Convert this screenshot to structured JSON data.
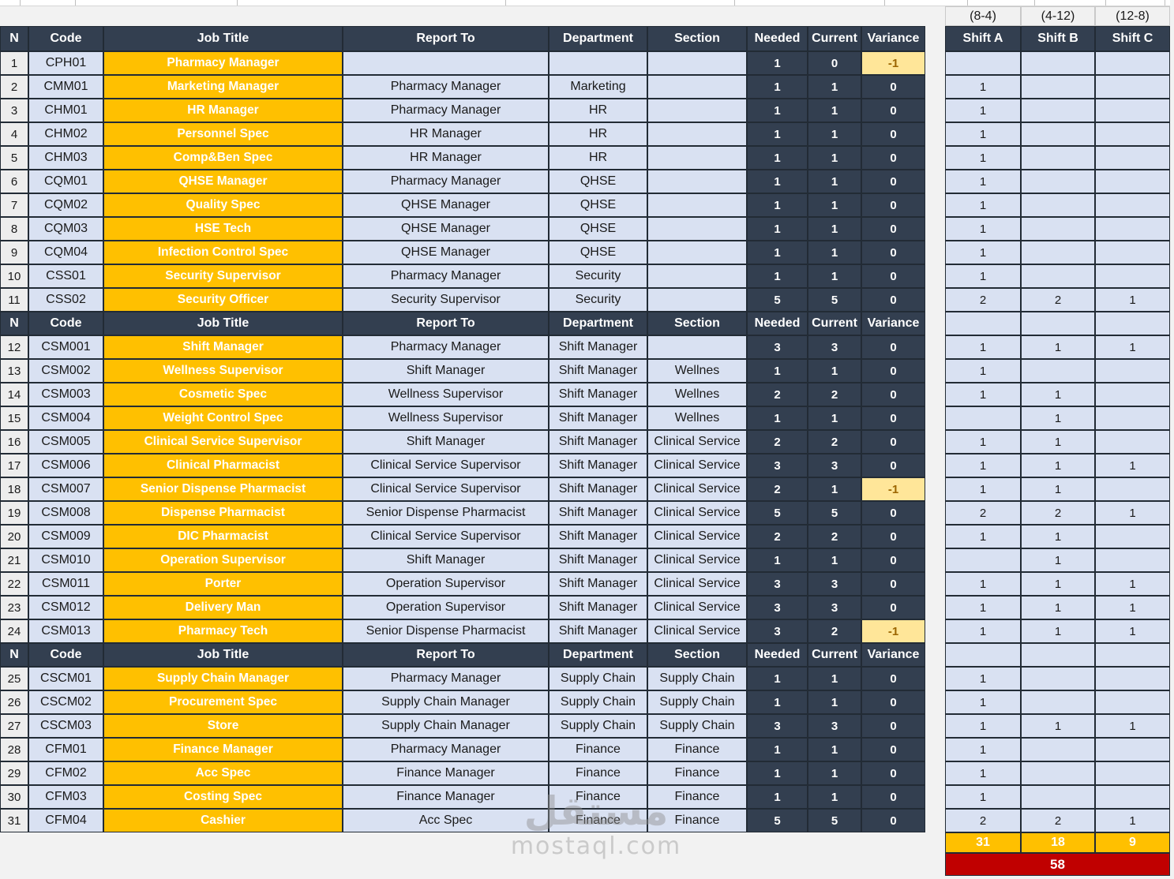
{
  "shift_time_labels": [
    "(8-4)",
    "(4-12)",
    "(12-8)"
  ],
  "columns": [
    "N",
    "Code",
    "Job Title",
    "Report To",
    "Department",
    "Section",
    "Needed",
    "Current",
    "Variance"
  ],
  "shift_columns": [
    "Shift A",
    "Shift B",
    "Shift C"
  ],
  "groups": [
    {
      "rows": [
        {
          "n": "1",
          "code": "CPH01",
          "job_title": "Pharmacy Manager",
          "report_to": "",
          "department": "",
          "section": "",
          "needed": "1",
          "current": "0",
          "variance": "-1",
          "shift_a": "",
          "shift_b": "",
          "shift_c": ""
        },
        {
          "n": "2",
          "code": "CMM01",
          "job_title": "Marketing Manager",
          "report_to": "Pharmacy Manager",
          "department": "Marketing",
          "section": "",
          "needed": "1",
          "current": "1",
          "variance": "0",
          "shift_a": "1",
          "shift_b": "",
          "shift_c": ""
        },
        {
          "n": "3",
          "code": "CHM01",
          "job_title": "HR Manager",
          "report_to": "Pharmacy Manager",
          "department": "HR",
          "section": "",
          "needed": "1",
          "current": "1",
          "variance": "0",
          "shift_a": "1",
          "shift_b": "",
          "shift_c": ""
        },
        {
          "n": "4",
          "code": "CHM02",
          "job_title": "Personnel Spec",
          "report_to": "HR Manager",
          "department": "HR",
          "section": "",
          "needed": "1",
          "current": "1",
          "variance": "0",
          "shift_a": "1",
          "shift_b": "",
          "shift_c": ""
        },
        {
          "n": "5",
          "code": "CHM03",
          "job_title": "Comp&Ben Spec",
          "report_to": "HR Manager",
          "department": "HR",
          "section": "",
          "needed": "1",
          "current": "1",
          "variance": "0",
          "shift_a": "1",
          "shift_b": "",
          "shift_c": ""
        },
        {
          "n": "6",
          "code": "CQM01",
          "job_title": "QHSE Manager",
          "report_to": "Pharmacy Manager",
          "department": "QHSE",
          "section": "",
          "needed": "1",
          "current": "1",
          "variance": "0",
          "shift_a": "1",
          "shift_b": "",
          "shift_c": ""
        },
        {
          "n": "7",
          "code": "CQM02",
          "job_title": "Quality Spec",
          "report_to": "QHSE Manager",
          "department": "QHSE",
          "section": "",
          "needed": "1",
          "current": "1",
          "variance": "0",
          "shift_a": "1",
          "shift_b": "",
          "shift_c": ""
        },
        {
          "n": "8",
          "code": "CQM03",
          "job_title": "HSE Tech",
          "report_to": "QHSE Manager",
          "department": "QHSE",
          "section": "",
          "needed": "1",
          "current": "1",
          "variance": "0",
          "shift_a": "1",
          "shift_b": "",
          "shift_c": ""
        },
        {
          "n": "9",
          "code": "CQM04",
          "job_title": "Infection Control Spec",
          "report_to": "QHSE Manager",
          "department": "QHSE",
          "section": "",
          "needed": "1",
          "current": "1",
          "variance": "0",
          "shift_a": "1",
          "shift_b": "",
          "shift_c": ""
        },
        {
          "n": "10",
          "code": "CSS01",
          "job_title": "Security Supervisor",
          "report_to": "Pharmacy Manager",
          "department": "Security",
          "section": "",
          "needed": "1",
          "current": "1",
          "variance": "0",
          "shift_a": "1",
          "shift_b": "",
          "shift_c": ""
        },
        {
          "n": "11",
          "code": "CSS02",
          "job_title": "Security Officer",
          "report_to": "Security Supervisor",
          "department": "Security",
          "section": "",
          "needed": "5",
          "current": "5",
          "variance": "0",
          "shift_a": "2",
          "shift_b": "2",
          "shift_c": "1"
        }
      ]
    },
    {
      "rows": [
        {
          "n": "12",
          "code": "CSM001",
          "job_title": "Shift Manager",
          "report_to": "Pharmacy Manager",
          "department": "Shift Manager",
          "section": "",
          "needed": "3",
          "current": "3",
          "variance": "0",
          "shift_a": "1",
          "shift_b": "1",
          "shift_c": "1"
        },
        {
          "n": "13",
          "code": "CSM002",
          "job_title": "Wellness Supervisor",
          "report_to": "Shift Manager",
          "department": "Shift Manager",
          "section": "Wellnes",
          "needed": "1",
          "current": "1",
          "variance": "0",
          "shift_a": "1",
          "shift_b": "",
          "shift_c": ""
        },
        {
          "n": "14",
          "code": "CSM003",
          "job_title": "Cosmetic Spec",
          "report_to": "Wellness Supervisor",
          "department": "Shift Manager",
          "section": "Wellnes",
          "needed": "2",
          "current": "2",
          "variance": "0",
          "shift_a": "1",
          "shift_b": "1",
          "shift_c": ""
        },
        {
          "n": "15",
          "code": "CSM004",
          "job_title": "Weight Control Spec",
          "report_to": "Wellness Supervisor",
          "department": "Shift Manager",
          "section": "Wellnes",
          "needed": "1",
          "current": "1",
          "variance": "0",
          "shift_a": "",
          "shift_b": "1",
          "shift_c": ""
        },
        {
          "n": "16",
          "code": "CSM005",
          "job_title": "Clinical Service Supervisor",
          "report_to": "Shift Manager",
          "department": "Shift Manager",
          "section": "Clinical Service",
          "needed": "2",
          "current": "2",
          "variance": "0",
          "shift_a": "1",
          "shift_b": "1",
          "shift_c": ""
        },
        {
          "n": "17",
          "code": "CSM006",
          "job_title": "Clinical Pharmacist",
          "report_to": "Clinical Service Supervisor",
          "department": "Shift Manager",
          "section": "Clinical Service",
          "needed": "3",
          "current": "3",
          "variance": "0",
          "shift_a": "1",
          "shift_b": "1",
          "shift_c": "1"
        },
        {
          "n": "18",
          "code": "CSM007",
          "job_title": "Senior Dispense Pharmacist",
          "report_to": "Clinical Service Supervisor",
          "department": "Shift Manager",
          "section": "Clinical Service",
          "needed": "2",
          "current": "1",
          "variance": "-1",
          "shift_a": "1",
          "shift_b": "1",
          "shift_c": ""
        },
        {
          "n": "19",
          "code": "CSM008",
          "job_title": "Dispense Pharmacist",
          "report_to": "Senior Dispense Pharmacist",
          "department": "Shift Manager",
          "section": "Clinical Service",
          "needed": "5",
          "current": "5",
          "variance": "0",
          "shift_a": "2",
          "shift_b": "2",
          "shift_c": "1"
        },
        {
          "n": "20",
          "code": "CSM009",
          "job_title": "DIC Pharmacist",
          "report_to": "Clinical Service Supervisor",
          "department": "Shift Manager",
          "section": "Clinical Service",
          "needed": "2",
          "current": "2",
          "variance": "0",
          "shift_a": "1",
          "shift_b": "1",
          "shift_c": ""
        },
        {
          "n": "21",
          "code": "CSM010",
          "job_title": "Operation Supervisor",
          "report_to": "Shift Manager",
          "department": "Shift Manager",
          "section": "Clinical Service",
          "needed": "1",
          "current": "1",
          "variance": "0",
          "shift_a": "",
          "shift_b": "1",
          "shift_c": ""
        },
        {
          "n": "22",
          "code": "CSM011",
          "job_title": "Porter",
          "report_to": "Operation Supervisor",
          "department": "Shift Manager",
          "section": "Clinical Service",
          "needed": "3",
          "current": "3",
          "variance": "0",
          "shift_a": "1",
          "shift_b": "1",
          "shift_c": "1"
        },
        {
          "n": "23",
          "code": "CSM012",
          "job_title": "Delivery Man",
          "report_to": "Operation Supervisor",
          "department": "Shift Manager",
          "section": "Clinical Service",
          "needed": "3",
          "current": "3",
          "variance": "0",
          "shift_a": "1",
          "shift_b": "1",
          "shift_c": "1"
        },
        {
          "n": "24",
          "code": "CSM013",
          "job_title": "Pharmacy Tech",
          "report_to": "Senior Dispense Pharmacist",
          "department": "Shift Manager",
          "section": "Clinical Service",
          "needed": "3",
          "current": "2",
          "variance": "-1",
          "shift_a": "1",
          "shift_b": "1",
          "shift_c": "1"
        }
      ]
    },
    {
      "rows": [
        {
          "n": "25",
          "code": "CSCM01",
          "job_title": "Supply Chain Manager",
          "report_to": "Pharmacy Manager",
          "department": "Supply Chain",
          "section": "Supply Chain",
          "needed": "1",
          "current": "1",
          "variance": "0",
          "shift_a": "1",
          "shift_b": "",
          "shift_c": ""
        },
        {
          "n": "26",
          "code": "CSCM02",
          "job_title": "Procurement Spec",
          "report_to": "Supply Chain Manager",
          "department": "Supply Chain",
          "section": "Supply Chain",
          "needed": "1",
          "current": "1",
          "variance": "0",
          "shift_a": "1",
          "shift_b": "",
          "shift_c": ""
        },
        {
          "n": "27",
          "code": "CSCM03",
          "job_title": "Store",
          "report_to": "Supply Chain Manager",
          "department": "Supply Chain",
          "section": "Supply Chain",
          "needed": "3",
          "current": "3",
          "variance": "0",
          "shift_a": "1",
          "shift_b": "1",
          "shift_c": "1"
        },
        {
          "n": "28",
          "code": "CFM01",
          "job_title": "Finance Manager",
          "report_to": "Pharmacy Manager",
          "department": "Finance",
          "section": "Finance",
          "needed": "1",
          "current": "1",
          "variance": "0",
          "shift_a": "1",
          "shift_b": "",
          "shift_c": ""
        },
        {
          "n": "29",
          "code": "CFM02",
          "job_title": "Acc Spec",
          "report_to": "Finance Manager",
          "department": "Finance",
          "section": "Finance",
          "needed": "1",
          "current": "1",
          "variance": "0",
          "shift_a": "1",
          "shift_b": "",
          "shift_c": ""
        },
        {
          "n": "30",
          "code": "CFM03",
          "job_title": "Costing Spec",
          "report_to": "Finance Manager",
          "department": "Finance",
          "section": "Finance",
          "needed": "1",
          "current": "1",
          "variance": "0",
          "shift_a": "1",
          "shift_b": "",
          "shift_c": ""
        },
        {
          "n": "31",
          "code": "CFM04",
          "job_title": "Cashier",
          "report_to": "Acc Spec",
          "department": "Finance",
          "section": "Finance",
          "needed": "5",
          "current": "5",
          "variance": "0",
          "shift_a": "2",
          "shift_b": "2",
          "shift_c": "1"
        }
      ]
    }
  ],
  "totals": {
    "shift_a": "31",
    "shift_b": "18",
    "shift_c": "9",
    "grand_total": "58"
  },
  "watermark": {
    "logo": "مستقل",
    "site": "mostaql.com"
  },
  "colors": {
    "header_dark": "#333F50",
    "job_title_orange": "#FFC000",
    "row_light_blue": "#D9E1F2",
    "row_number_gray": "#EDEDED",
    "variance_warning_bg": "#FFE699",
    "variance_warning_text": "#9C6500",
    "totals_orange": "#FFC000",
    "grand_total_red": "#C00000"
  }
}
